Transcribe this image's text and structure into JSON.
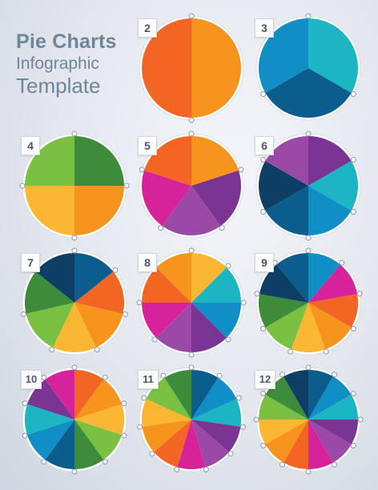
{
  "title": {
    "line1": "Pie Charts",
    "line2": "Infographic",
    "line3": "Template"
  },
  "charts": [
    {
      "label": "2",
      "segments": 2,
      "colors": [
        "#f7941d",
        "#f26522"
      ]
    },
    {
      "label": "3",
      "segments": 3,
      "colors": [
        "#1bb5c4",
        "#0a5d8c",
        "#0f8fc6"
      ]
    },
    {
      "label": "4",
      "segments": 4,
      "colors": [
        "#3c8c3a",
        "#f7941d",
        "#fbb731",
        "#7ac143"
      ]
    },
    {
      "label": "5",
      "segments": 5,
      "colors": [
        "#f7941d",
        "#7a3494",
        "#9b49a6",
        "#d6239b",
        "#f26522"
      ]
    },
    {
      "label": "6",
      "segments": 6,
      "colors": [
        "#7a3494",
        "#1bb5c4",
        "#0f8fc6",
        "#0a5d8c",
        "#0c3f63",
        "#9b49a6"
      ]
    },
    {
      "label": "7",
      "segments": 7,
      "colors": [
        "#0a5d8c",
        "#f26522",
        "#f7941d",
        "#fbb731",
        "#7ac143",
        "#3c8c3a",
        "#0c3f63"
      ]
    },
    {
      "label": "8",
      "segments": 8,
      "colors": [
        "#fbb731",
        "#1bb5c4",
        "#0f8fc6",
        "#7a3494",
        "#9b49a6",
        "#d6239b",
        "#f26522",
        "#f7941d"
      ]
    },
    {
      "label": "9",
      "segments": 9,
      "colors": [
        "#0f8fc6",
        "#d6239b",
        "#f26522",
        "#f7941d",
        "#fbb731",
        "#7ac143",
        "#3c8c3a",
        "#0c3f63",
        "#0a5d8c"
      ]
    },
    {
      "label": "10",
      "segments": 10,
      "colors": [
        "#f26522",
        "#f7941d",
        "#fbb731",
        "#7ac143",
        "#3c8c3a",
        "#0a5d8c",
        "#0f8fc6",
        "#1bb5c4",
        "#7a3494",
        "#d6239b"
      ]
    },
    {
      "label": "11",
      "segments": 11,
      "colors": [
        "#0a5d8c",
        "#0f8fc6",
        "#1bb5c4",
        "#7a3494",
        "#9b49a6",
        "#d6239b",
        "#f26522",
        "#f7941d",
        "#fbb731",
        "#7ac143",
        "#3c8c3a"
      ]
    },
    {
      "label": "12",
      "segments": 12,
      "colors": [
        "#0a5d8c",
        "#0f8fc6",
        "#1bb5c4",
        "#7a3494",
        "#9b49a6",
        "#d6239b",
        "#f26522",
        "#f7941d",
        "#fbb731",
        "#7ac143",
        "#3c8c3a",
        "#0c3f63"
      ]
    }
  ]
}
